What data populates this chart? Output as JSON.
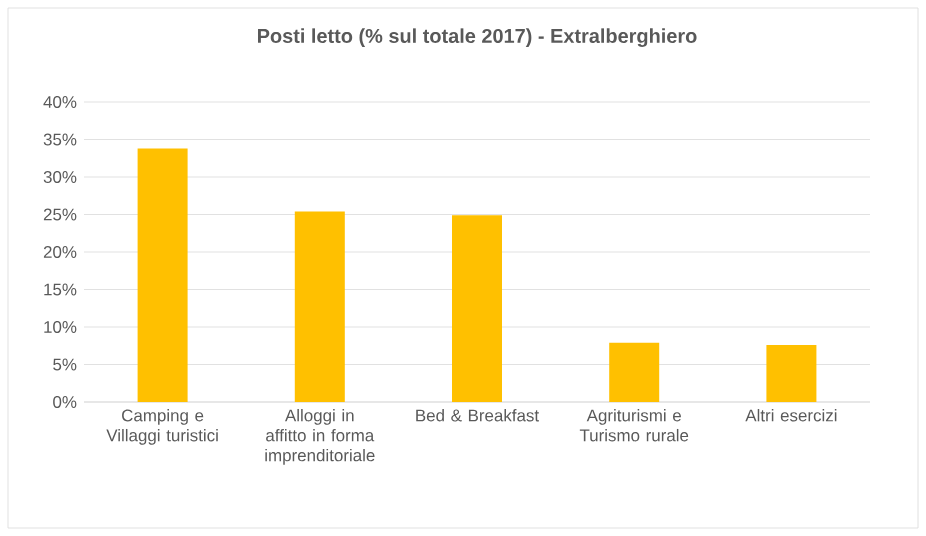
{
  "chart_data": {
    "type": "bar",
    "title": "Posti letto (% sul totale 2017) - Extralberghiero",
    "categories": [
      "Camping e Villaggi turistici",
      "Alloggi in affitto in forma imprenditoriale",
      "Bed & Breakfast",
      "Agriturismi e Turismo rurale",
      "Altri esercizi"
    ],
    "values": [
      33.8,
      25.4,
      24.9,
      7.9,
      7.6
    ],
    "color": "#ffc000",
    "ylim": [
      0,
      40
    ],
    "yticks": [
      {
        "value": 0,
        "label": "0%"
      },
      {
        "value": 5,
        "label": "5%"
      },
      {
        "value": 10,
        "label": "10%"
      },
      {
        "value": 15,
        "label": "15%"
      },
      {
        "value": 20,
        "label": "20%"
      },
      {
        "value": 25,
        "label": "25%"
      },
      {
        "value": 30,
        "label": "30%"
      },
      {
        "value": 35,
        "label": "35%"
      },
      {
        "value": 40,
        "label": "40%"
      }
    ],
    "grid": "y"
  }
}
